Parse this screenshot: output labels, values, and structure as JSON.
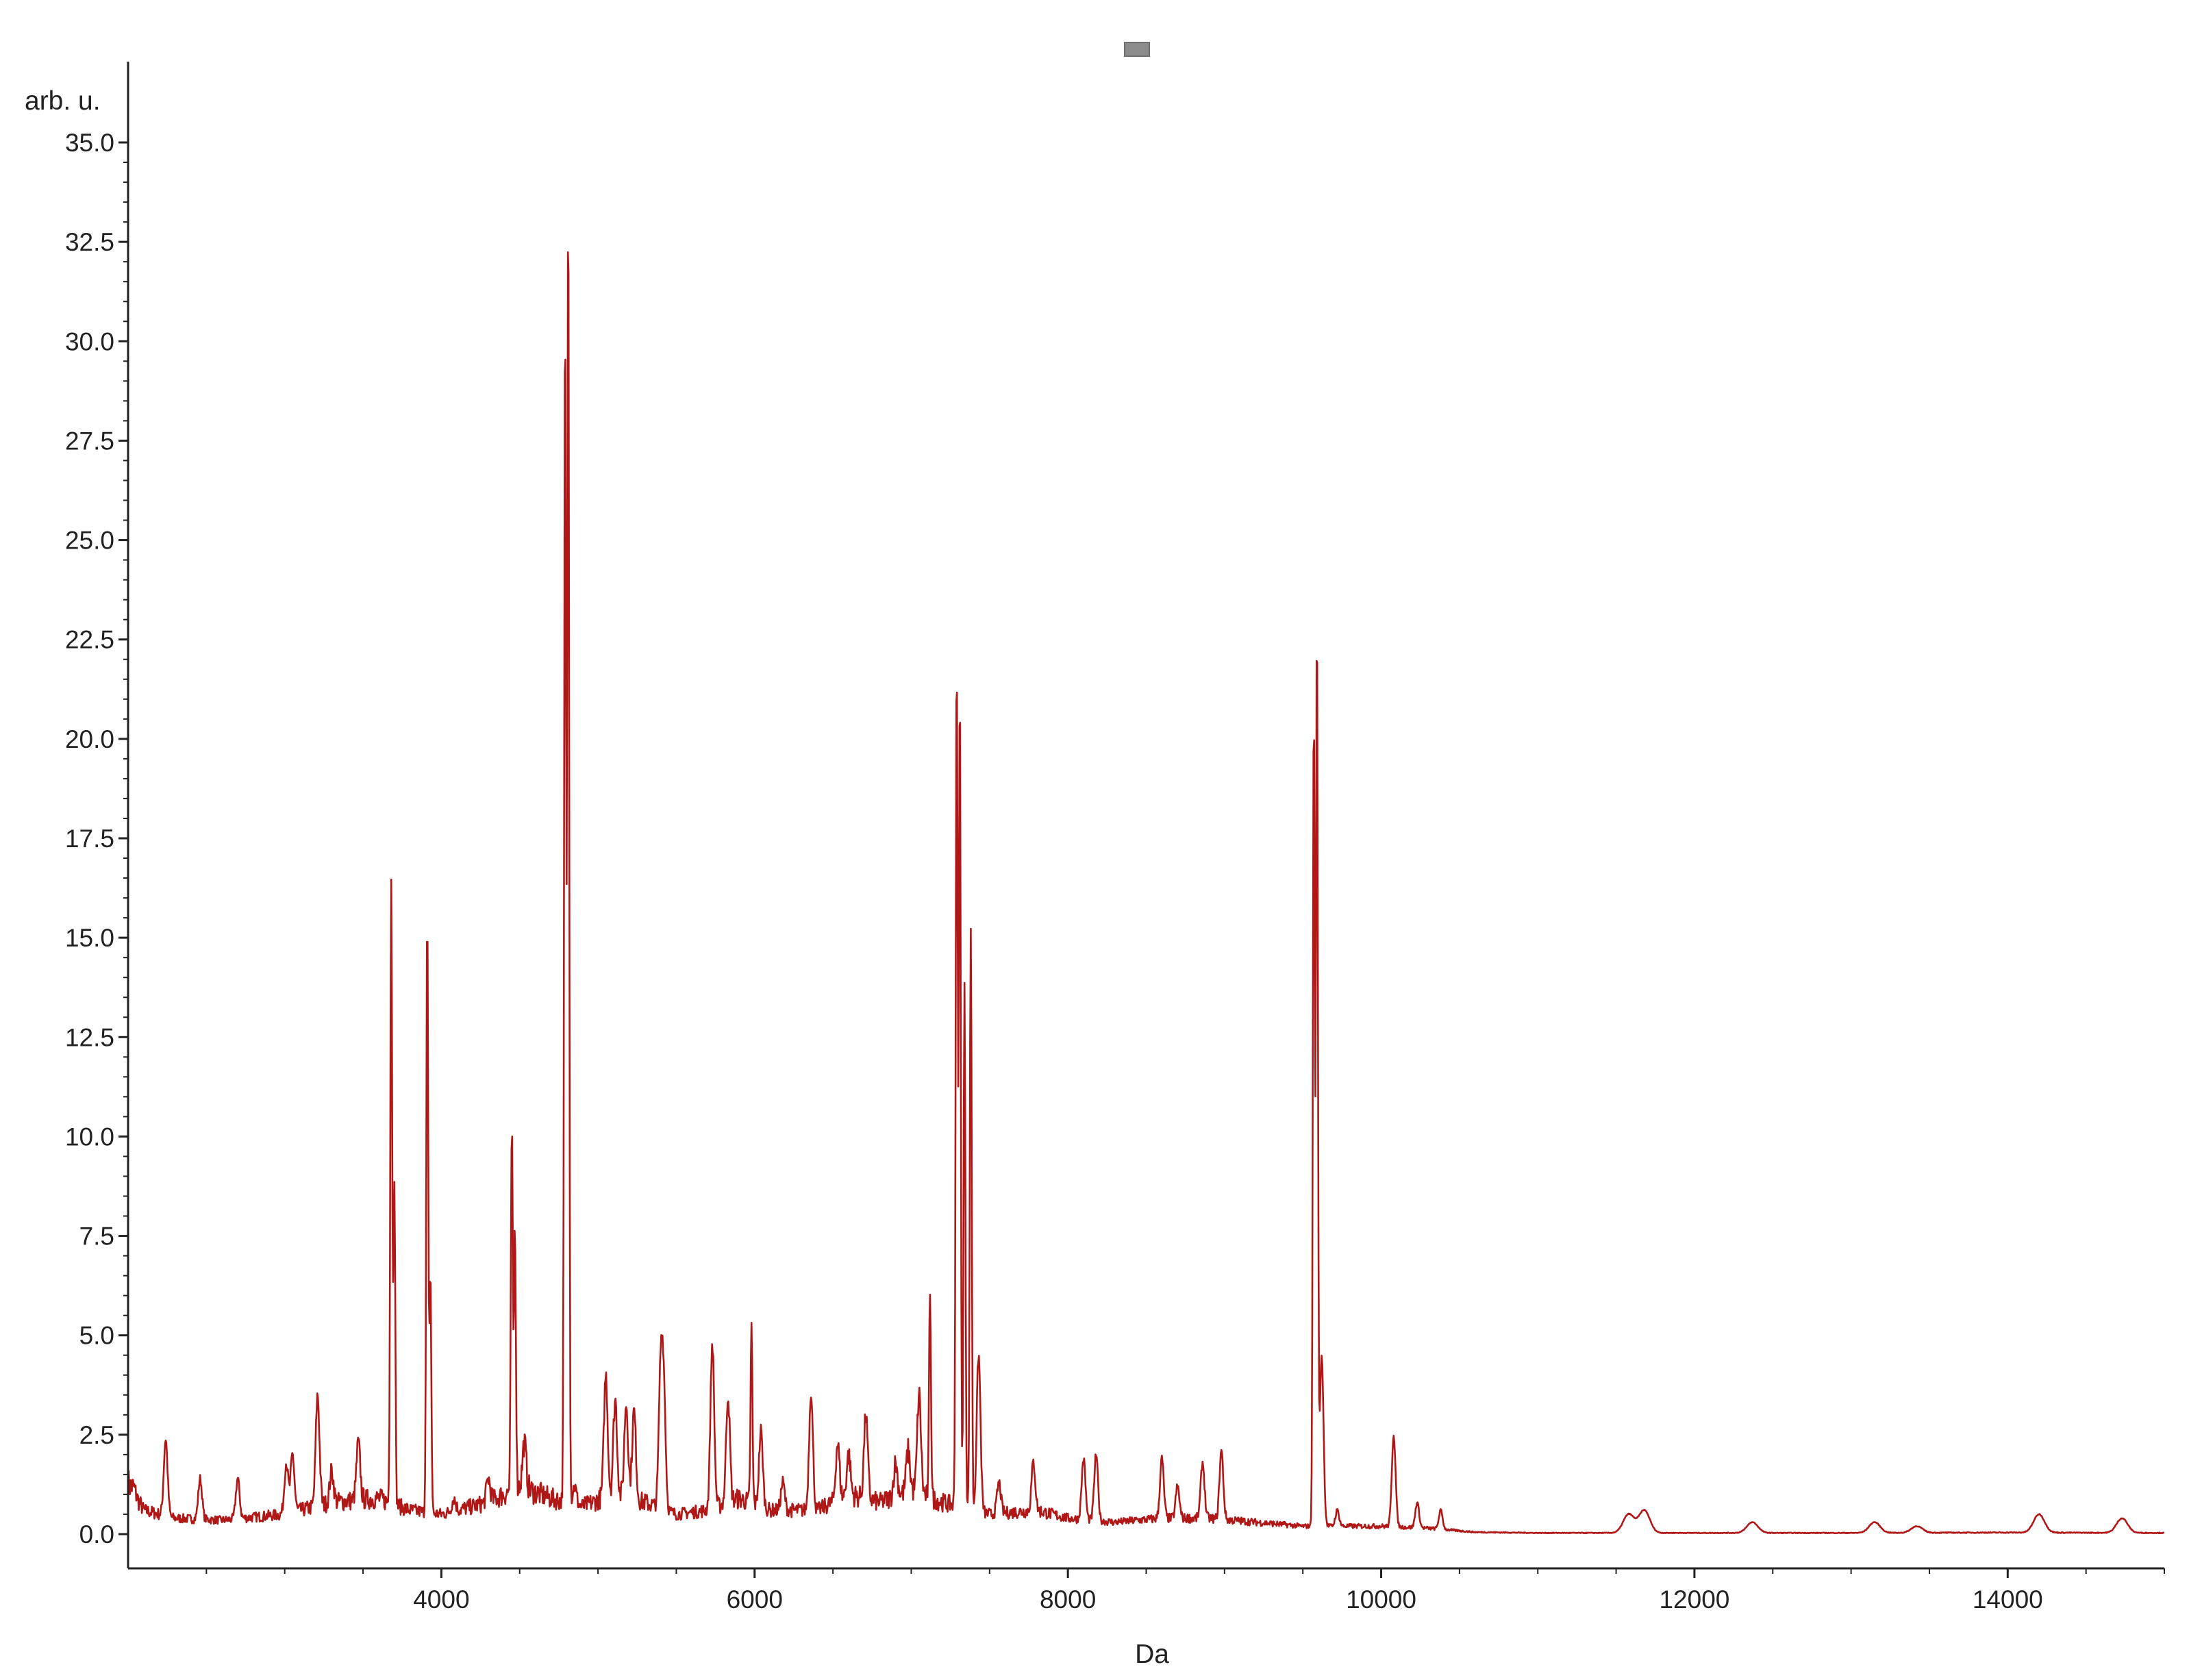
{
  "chart_data": {
    "type": "line",
    "title": "",
    "xlabel": "Da",
    "ylabel": "arb. u.",
    "xlim": [
      2000,
      15000
    ],
    "ylim": [
      0,
      35
    ],
    "grid": false,
    "line_color": "#b01818",
    "legend_swatch_color": "#8c8c8c",
    "x_ticks": [
      4000,
      6000,
      8000,
      10000,
      12000,
      14000
    ],
    "x_tick_labels": [
      "4000",
      "6000",
      "8000",
      "10000",
      "12000",
      "14000"
    ],
    "y_ticks": [
      0,
      2.5,
      5,
      7.5,
      10,
      12.5,
      15,
      17.5,
      20,
      22.5,
      25,
      27.5,
      30,
      32.5,
      35
    ],
    "y_tick_labels": [
      "0.0",
      "2.5",
      "5.0",
      "7.5",
      "10.0",
      "12.5",
      "15.0",
      "17.5",
      "20.0",
      "22.5",
      "25.0",
      "27.5",
      "30.0",
      "32.5",
      "35.0"
    ],
    "series": [
      {
        "baseline": [
          [
            2000,
            1.3
          ],
          [
            2100,
            0.6
          ],
          [
            2300,
            0.4
          ],
          [
            2600,
            0.35
          ],
          [
            3000,
            0.5
          ],
          [
            3300,
            0.8
          ],
          [
            3600,
            0.9
          ],
          [
            3800,
            0.6
          ],
          [
            4000,
            0.5
          ],
          [
            4300,
            0.8
          ],
          [
            4500,
            1.2
          ],
          [
            4700,
            0.9
          ],
          [
            4900,
            0.7
          ],
          [
            5100,
            1.0
          ],
          [
            5300,
            0.8
          ],
          [
            5500,
            0.5
          ],
          [
            5700,
            0.6
          ],
          [
            5900,
            0.9
          ],
          [
            6100,
            0.6
          ],
          [
            6400,
            0.6
          ],
          [
            6600,
            1.0
          ],
          [
            6800,
            0.8
          ],
          [
            7000,
            1.1
          ],
          [
            7200,
            0.8
          ],
          [
            7500,
            0.5
          ],
          [
            7800,
            0.6
          ],
          [
            8000,
            0.4
          ],
          [
            8300,
            0.3
          ],
          [
            8600,
            0.4
          ],
          [
            8900,
            0.4
          ],
          [
            9200,
            0.3
          ],
          [
            9500,
            0.2
          ],
          [
            9800,
            0.2
          ],
          [
            10000,
            0.2
          ],
          [
            10300,
            0.15
          ],
          [
            10600,
            0.05
          ],
          [
            11000,
            0.03
          ],
          [
            12000,
            0.03
          ],
          [
            13000,
            0.03
          ],
          [
            14000,
            0.04
          ],
          [
            15000,
            0.03
          ]
        ],
        "peaks": [
          [
            2030,
            1.2
          ],
          [
            2240,
            2.4
          ],
          [
            2460,
            1.4
          ],
          [
            2700,
            1.4
          ],
          [
            3010,
            1.8
          ],
          [
            3050,
            2.0
          ],
          [
            3210,
            3.5
          ],
          [
            3300,
            1.6
          ],
          [
            3470,
            2.3
          ],
          [
            3680,
            16.5
          ],
          [
            3700,
            9.0
          ],
          [
            3910,
            15.6
          ],
          [
            3930,
            6.6
          ],
          [
            4080,
            0.9
          ],
          [
            4300,
            1.4
          ],
          [
            4450,
            10.2
          ],
          [
            4470,
            7.8
          ],
          [
            4530,
            2.3
          ],
          [
            4790,
            30.7
          ],
          [
            4810,
            33.7
          ],
          [
            4850,
            1.2
          ],
          [
            5050,
            4.0
          ],
          [
            5110,
            3.4
          ],
          [
            5180,
            3.3
          ],
          [
            5230,
            3.1
          ],
          [
            5400,
            4.0
          ],
          [
            5420,
            3.5
          ],
          [
            5730,
            4.8
          ],
          [
            5830,
            3.5
          ],
          [
            5980,
            5.2
          ],
          [
            6040,
            2.6
          ],
          [
            6180,
            1.3
          ],
          [
            6360,
            3.6
          ],
          [
            6530,
            2.3
          ],
          [
            6600,
            2.0
          ],
          [
            6710,
            3.0
          ],
          [
            6900,
            1.8
          ],
          [
            6980,
            2.1
          ],
          [
            7050,
            3.5
          ],
          [
            7120,
            6.2
          ],
          [
            7290,
            22.2
          ],
          [
            7310,
            21.4
          ],
          [
            7340,
            13.7
          ],
          [
            7380,
            15.3
          ],
          [
            7430,
            4.5
          ],
          [
            7560,
            1.3
          ],
          [
            7780,
            1.8
          ],
          [
            8100,
            1.9
          ],
          [
            8180,
            2.0
          ],
          [
            8600,
            1.9
          ],
          [
            8700,
            1.2
          ],
          [
            8860,
            1.8
          ],
          [
            8980,
            2.1
          ],
          [
            9570,
            20.8
          ],
          [
            9590,
            22.8
          ],
          [
            9620,
            4.5
          ],
          [
            9720,
            0.6
          ],
          [
            10080,
            2.5
          ],
          [
            10230,
            0.8
          ],
          [
            10380,
            0.6
          ],
          [
            11580,
            0.5
          ],
          [
            11680,
            0.6
          ],
          [
            12370,
            0.3
          ],
          [
            13150,
            0.3
          ],
          [
            13420,
            0.2
          ],
          [
            14200,
            0.5
          ],
          [
            14730,
            0.4
          ]
        ]
      }
    ]
  }
}
